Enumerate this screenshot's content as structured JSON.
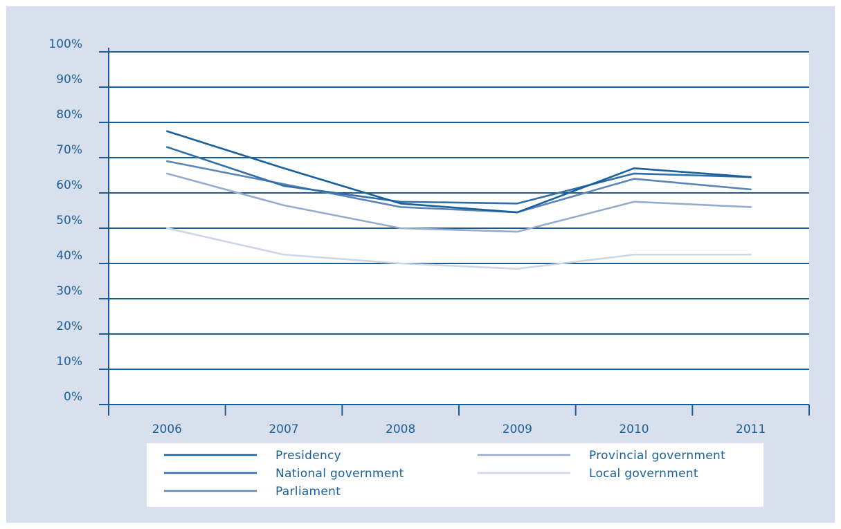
{
  "colors": {
    "background": "#d9e0ed",
    "plot_background": "#ffffff",
    "grid": "#1b5a93",
    "axis": "#1b5a93",
    "text": "#1a5f96"
  },
  "chart_data": {
    "type": "line",
    "categories": [
      "2006",
      "2007",
      "2008",
      "2009",
      "2010",
      "2011"
    ],
    "y_ticks": [
      "0%",
      "10%",
      "20%",
      "30%",
      "40%",
      "50%",
      "60%",
      "70%",
      "80%",
      "90%",
      "100%"
    ],
    "ylim": [
      0,
      100
    ],
    "y_unit": "%",
    "grid": true,
    "legend_position": "bottom",
    "series": [
      {
        "name": "Presidency",
        "color": "#17609b",
        "values": [
          77.5,
          67,
          57,
          54.5,
          67,
          64.5
        ]
      },
      {
        "name": "National government",
        "color": "#2f6ea6",
        "values": [
          73,
          62,
          57.5,
          57,
          65.5,
          64.5
        ]
      },
      {
        "name": "Parliament",
        "color": "#5b85b7",
        "values": [
          69,
          62.5,
          56,
          54.5,
          64,
          61
        ]
      },
      {
        "name": "Provincial government",
        "color": "#94abcd",
        "values": [
          65.5,
          56.5,
          50,
          49,
          57.5,
          56
        ]
      },
      {
        "name": "Local government",
        "color": "#cbd6e7",
        "values": [
          50,
          42.5,
          40,
          38.5,
          42.5,
          42.5
        ]
      }
    ]
  }
}
